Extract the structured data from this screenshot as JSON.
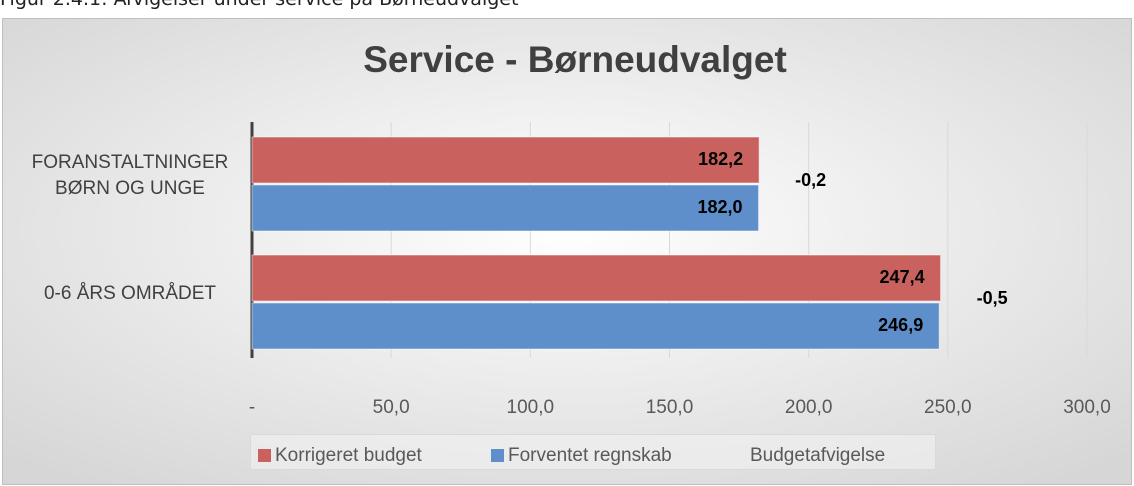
{
  "caption": "Figur 2.4.1: Afvigelser under service på Børneudvalget",
  "chart_data": {
    "type": "bar",
    "orientation": "horizontal",
    "title": "Service - Børneudvalget",
    "categories": [
      "FORANSTALTNINGER BØRN OG UNGE",
      "0-6 ÅRS OMRÅDET"
    ],
    "series": [
      {
        "name": "Korrigeret budget",
        "color": "#c9625f",
        "values": [
          182.2,
          247.4
        ],
        "value_labels": [
          "182,2",
          "247,4"
        ]
      },
      {
        "name": "Forventet regnskab",
        "color": "#5f8fcb",
        "values": [
          182.0,
          246.9
        ],
        "value_labels": [
          "182,0",
          "246,9"
        ]
      },
      {
        "name": "Budgetafvigelse",
        "values": [
          -0.2,
          -0.5
        ],
        "value_labels": [
          "-0,2",
          "-0,5"
        ]
      }
    ],
    "xlim": [
      0,
      300
    ],
    "xticks": [
      {
        "value": 0,
        "label": "-"
      },
      {
        "value": 50,
        "label": "50,0"
      },
      {
        "value": 100,
        "label": "100,0"
      },
      {
        "value": 150,
        "label": "150,0"
      },
      {
        "value": 200,
        "label": "200,0"
      },
      {
        "value": 250,
        "label": "250,0"
      },
      {
        "value": 300,
        "label": "300,0"
      }
    ],
    "grid": true,
    "legend": "bottom"
  }
}
